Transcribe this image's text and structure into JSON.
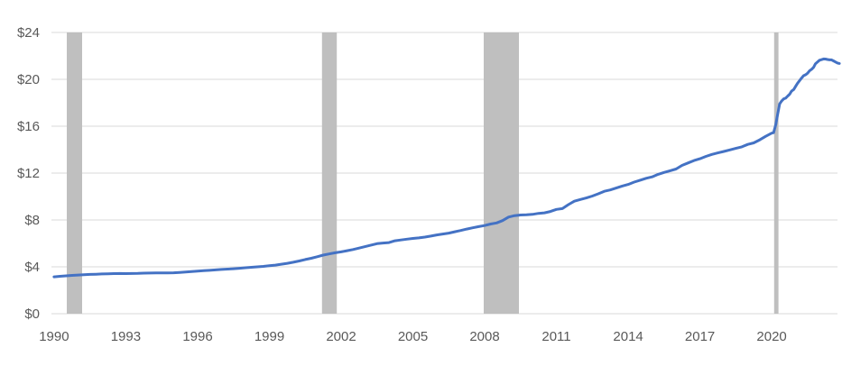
{
  "chart_data": {
    "type": "line",
    "title": "",
    "xlabel": "",
    "ylabel": "",
    "currency_prefix": "$",
    "y_tick_labels": [
      "$24",
      "$20",
      "$16",
      "$12",
      "$8",
      "$4",
      "$0"
    ],
    "y_tick_values": [
      24,
      20,
      16,
      12,
      8,
      4,
      0
    ],
    "x_tick_labels": [
      "1990",
      "1993",
      "1996",
      "1999",
      "2002",
      "2005",
      "2008",
      "2011",
      "2014",
      "2017",
      "2020"
    ],
    "x_tick_years": [
      1990,
      1993,
      1996,
      1999,
      2002,
      2005,
      2008,
      2011,
      2014,
      2017,
      2020
    ],
    "xlim": [
      1989.89,
      2022.75
    ],
    "ylim": [
      0,
      24
    ],
    "grid": "horizontal",
    "legend": "none",
    "line_color": "#4472C4",
    "line_width": 3,
    "gridline_color": "#D9D9D9",
    "recession_band_color": "#BFBFBF",
    "axis_label_color": "#595959",
    "recession_bands": [
      [
        1990.53,
        1991.17
      ],
      [
        2001.2,
        2001.82
      ],
      [
        2007.96,
        2009.43
      ],
      [
        2020.1,
        2020.28
      ]
    ],
    "series": [
      {
        "name": "",
        "points": [
          [
            1990.0,
            3.15
          ],
          [
            1990.25,
            3.19
          ],
          [
            1990.5,
            3.23
          ],
          [
            1990.75,
            3.27
          ],
          [
            1991.0,
            3.3
          ],
          [
            1991.25,
            3.33
          ],
          [
            1991.5,
            3.35
          ],
          [
            1991.75,
            3.37
          ],
          [
            1992.0,
            3.39
          ],
          [
            1992.25,
            3.41
          ],
          [
            1992.5,
            3.42
          ],
          [
            1992.75,
            3.43
          ],
          [
            1993.0,
            3.42
          ],
          [
            1993.25,
            3.43
          ],
          [
            1993.5,
            3.44
          ],
          [
            1993.75,
            3.46
          ],
          [
            1994.0,
            3.47
          ],
          [
            1994.25,
            3.48
          ],
          [
            1994.5,
            3.48
          ],
          [
            1994.75,
            3.48
          ],
          [
            1995.0,
            3.49
          ],
          [
            1995.25,
            3.52
          ],
          [
            1995.5,
            3.56
          ],
          [
            1995.75,
            3.6
          ],
          [
            1996.0,
            3.64
          ],
          [
            1996.25,
            3.67
          ],
          [
            1996.5,
            3.7
          ],
          [
            1996.75,
            3.74
          ],
          [
            1997.0,
            3.78
          ],
          [
            1997.25,
            3.81
          ],
          [
            1997.5,
            3.84
          ],
          [
            1997.75,
            3.88
          ],
          [
            1998.0,
            3.92
          ],
          [
            1998.25,
            3.96
          ],
          [
            1998.5,
            4.0
          ],
          [
            1998.75,
            4.04
          ],
          [
            1999.0,
            4.09
          ],
          [
            1999.25,
            4.15
          ],
          [
            1999.5,
            4.22
          ],
          [
            1999.75,
            4.3
          ],
          [
            2000.0,
            4.39
          ],
          [
            2000.25,
            4.5
          ],
          [
            2000.5,
            4.62
          ],
          [
            2000.75,
            4.73
          ],
          [
            2001.0,
            4.86
          ],
          [
            2001.25,
            5.0
          ],
          [
            2001.5,
            5.1
          ],
          [
            2001.75,
            5.2
          ],
          [
            2002.0,
            5.28
          ],
          [
            2002.25,
            5.38
          ],
          [
            2002.5,
            5.48
          ],
          [
            2002.75,
            5.6
          ],
          [
            2003.0,
            5.72
          ],
          [
            2003.25,
            5.85
          ],
          [
            2003.5,
            5.98
          ],
          [
            2003.75,
            6.03
          ],
          [
            2004.0,
            6.07
          ],
          [
            2004.25,
            6.22
          ],
          [
            2004.5,
            6.29
          ],
          [
            2004.75,
            6.36
          ],
          [
            2005.0,
            6.42
          ],
          [
            2005.25,
            6.47
          ],
          [
            2005.5,
            6.54
          ],
          [
            2005.75,
            6.62
          ],
          [
            2006.0,
            6.72
          ],
          [
            2006.25,
            6.8
          ],
          [
            2006.5,
            6.88
          ],
          [
            2006.75,
            6.99
          ],
          [
            2007.0,
            7.1
          ],
          [
            2007.25,
            7.22
          ],
          [
            2007.5,
            7.33
          ],
          [
            2007.75,
            7.43
          ],
          [
            2008.0,
            7.52
          ],
          [
            2008.25,
            7.65
          ],
          [
            2008.5,
            7.75
          ],
          [
            2008.75,
            7.95
          ],
          [
            2009.0,
            8.25
          ],
          [
            2009.25,
            8.37
          ],
          [
            2009.5,
            8.42
          ],
          [
            2009.75,
            8.44
          ],
          [
            2010.0,
            8.48
          ],
          [
            2010.25,
            8.56
          ],
          [
            2010.5,
            8.61
          ],
          [
            2010.75,
            8.72
          ],
          [
            2011.0,
            8.9
          ],
          [
            2011.25,
            8.97
          ],
          [
            2011.5,
            9.31
          ],
          [
            2011.75,
            9.6
          ],
          [
            2012.0,
            9.75
          ],
          [
            2012.25,
            9.88
          ],
          [
            2012.5,
            10.04
          ],
          [
            2012.75,
            10.23
          ],
          [
            2013.0,
            10.45
          ],
          [
            2013.25,
            10.56
          ],
          [
            2013.5,
            10.72
          ],
          [
            2013.75,
            10.89
          ],
          [
            2014.0,
            11.03
          ],
          [
            2014.25,
            11.23
          ],
          [
            2014.5,
            11.39
          ],
          [
            2014.75,
            11.55
          ],
          [
            2015.0,
            11.68
          ],
          [
            2015.25,
            11.89
          ],
          [
            2015.5,
            12.05
          ],
          [
            2015.75,
            12.2
          ],
          [
            2016.0,
            12.35
          ],
          [
            2016.25,
            12.65
          ],
          [
            2016.5,
            12.86
          ],
          [
            2016.75,
            13.07
          ],
          [
            2017.0,
            13.22
          ],
          [
            2017.25,
            13.42
          ],
          [
            2017.5,
            13.59
          ],
          [
            2017.75,
            13.72
          ],
          [
            2018.0,
            13.85
          ],
          [
            2018.25,
            13.98
          ],
          [
            2018.5,
            14.11
          ],
          [
            2018.75,
            14.24
          ],
          [
            2019.0,
            14.45
          ],
          [
            2019.25,
            14.58
          ],
          [
            2019.5,
            14.84
          ],
          [
            2019.75,
            15.14
          ],
          [
            2020.0,
            15.41
          ],
          [
            2020.08,
            15.45
          ],
          [
            2020.17,
            16.12
          ],
          [
            2020.25,
            17.02
          ],
          [
            2020.33,
            17.9
          ],
          [
            2020.42,
            18.16
          ],
          [
            2020.5,
            18.33
          ],
          [
            2020.58,
            18.39
          ],
          [
            2020.67,
            18.58
          ],
          [
            2020.75,
            18.73
          ],
          [
            2020.83,
            18.99
          ],
          [
            2020.92,
            19.13
          ],
          [
            2021.0,
            19.4
          ],
          [
            2021.08,
            19.66
          ],
          [
            2021.17,
            19.9
          ],
          [
            2021.25,
            20.11
          ],
          [
            2021.33,
            20.31
          ],
          [
            2021.42,
            20.39
          ],
          [
            2021.5,
            20.52
          ],
          [
            2021.58,
            20.72
          ],
          [
            2021.67,
            20.86
          ],
          [
            2021.75,
            21.02
          ],
          [
            2021.83,
            21.33
          ],
          [
            2021.92,
            21.49
          ],
          [
            2022.0,
            21.63
          ],
          [
            2022.08,
            21.68
          ],
          [
            2022.17,
            21.74
          ],
          [
            2022.25,
            21.73
          ],
          [
            2022.33,
            21.69
          ],
          [
            2022.42,
            21.66
          ],
          [
            2022.5,
            21.66
          ],
          [
            2022.58,
            21.58
          ],
          [
            2022.67,
            21.48
          ],
          [
            2022.75,
            21.39
          ],
          [
            2022.83,
            21.35
          ]
        ]
      }
    ]
  }
}
